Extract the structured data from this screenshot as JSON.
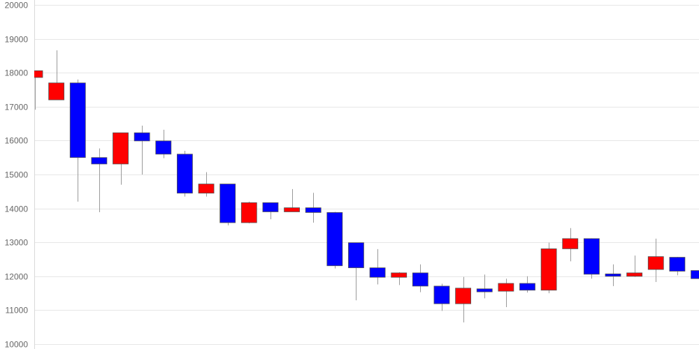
{
  "chart_data": {
    "type": "candlestick",
    "title": "",
    "xlabel": "",
    "ylabel": "",
    "ylim": [
      10000,
      20000
    ],
    "y_ticks": [
      "10000",
      "11000",
      "12000",
      "13000",
      "14000",
      "15000",
      "16000",
      "17000",
      "18000",
      "19000",
      "20000"
    ],
    "grid": true,
    "legend": "none",
    "colors": {
      "up": "#ff0000",
      "down": "#0000ff",
      "wick": "#999999",
      "grid": "#e6e6e6",
      "axis": "#d9d9d9"
    },
    "candles": [
      {
        "open": 17860,
        "high": 18060,
        "low": 16910,
        "close": 18060
      },
      {
        "open": 17200,
        "high": 18660,
        "low": 17200,
        "close": 17700
      },
      {
        "open": 17700,
        "high": 17800,
        "low": 14200,
        "close": 15500
      },
      {
        "open": 15500,
        "high": 15770,
        "low": 13890,
        "close": 15310
      },
      {
        "open": 15310,
        "high": 16230,
        "low": 14700,
        "close": 16230
      },
      {
        "open": 16230,
        "high": 16440,
        "low": 15000,
        "close": 15990
      },
      {
        "open": 15990,
        "high": 16320,
        "low": 15480,
        "close": 15600
      },
      {
        "open": 15600,
        "high": 15700,
        "low": 14350,
        "close": 14450
      },
      {
        "open": 14450,
        "high": 15070,
        "low": 14350,
        "close": 14720
      },
      {
        "open": 14720,
        "high": 14720,
        "low": 13500,
        "close": 13580
      },
      {
        "open": 13580,
        "high": 14200,
        "low": 13560,
        "close": 14170
      },
      {
        "open": 14170,
        "high": 14170,
        "low": 13680,
        "close": 13900
      },
      {
        "open": 13900,
        "high": 14570,
        "low": 13900,
        "close": 14020
      },
      {
        "open": 14020,
        "high": 14460,
        "low": 13580,
        "close": 13880
      },
      {
        "open": 13880,
        "high": 13900,
        "low": 12230,
        "close": 12310
      },
      {
        "open": 12990,
        "high": 12990,
        "low": 11290,
        "close": 12250
      },
      {
        "open": 12250,
        "high": 12800,
        "low": 11760,
        "close": 11970
      },
      {
        "open": 11970,
        "high": 12120,
        "low": 11740,
        "close": 12100
      },
      {
        "open": 12100,
        "high": 12350,
        "low": 11530,
        "close": 11710
      },
      {
        "open": 11710,
        "high": 11780,
        "low": 10980,
        "close": 11190
      },
      {
        "open": 11190,
        "high": 11980,
        "low": 10640,
        "close": 11650
      },
      {
        "open": 11630,
        "high": 12050,
        "low": 11350,
        "close": 11540
      },
      {
        "open": 11560,
        "high": 11930,
        "low": 11090,
        "close": 11790
      },
      {
        "open": 11790,
        "high": 12000,
        "low": 11520,
        "close": 11590
      },
      {
        "open": 11590,
        "high": 12990,
        "low": 11500,
        "close": 12810
      },
      {
        "open": 12810,
        "high": 13420,
        "low": 12440,
        "close": 13110
      },
      {
        "open": 13110,
        "high": 13120,
        "low": 11930,
        "close": 12060
      },
      {
        "open": 12070,
        "high": 12350,
        "low": 11710,
        "close": 12000
      },
      {
        "open": 12000,
        "high": 12610,
        "low": 11980,
        "close": 12100
      },
      {
        "open": 12200,
        "high": 13110,
        "low": 11830,
        "close": 12580
      },
      {
        "open": 12560,
        "high": 12570,
        "low": 12030,
        "close": 12150
      },
      {
        "open": 12170,
        "high": 12300,
        "low": 11800,
        "close": 11930
      }
    ]
  }
}
